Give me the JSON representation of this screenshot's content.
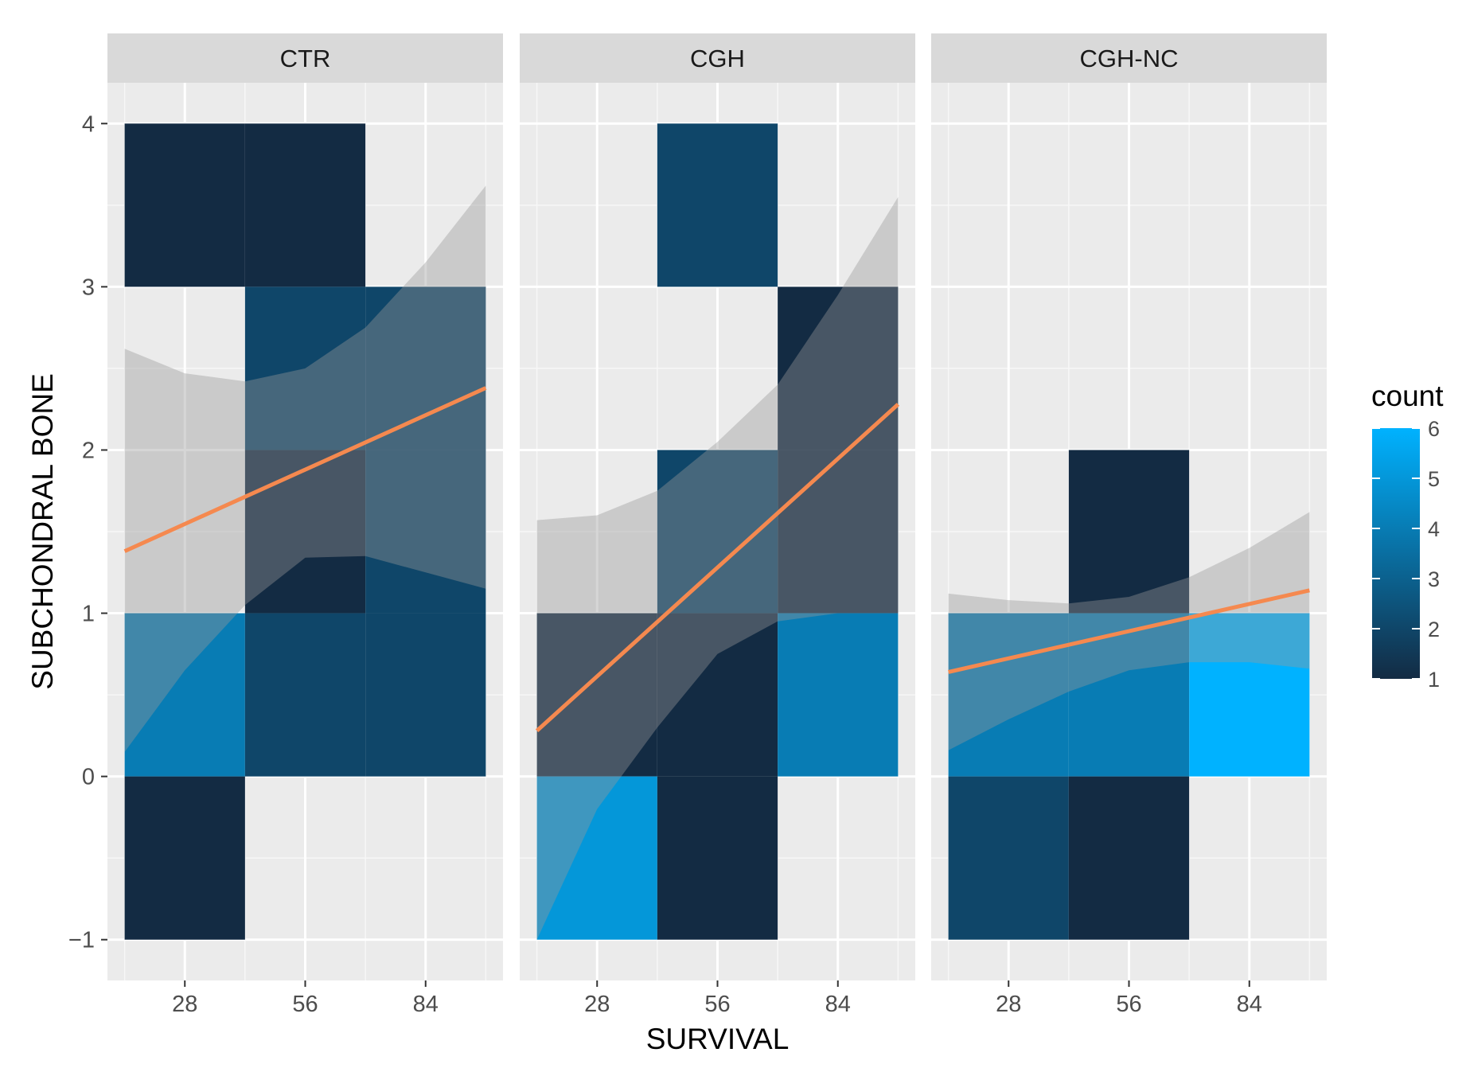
{
  "chart_data": {
    "type": "heatmap",
    "subtype": "faceted 2D bin count heatmap with linear regression lines and confidence bands",
    "xlabel": "SURVIVAL",
    "ylabel": "SUBCHONDRAL BONE",
    "x_ticks": [
      28,
      56,
      84
    ],
    "y_ticks": [
      -1,
      0,
      1,
      2,
      3,
      4
    ],
    "y_tick_labels": [
      "−1",
      "0",
      "1",
      "2",
      "3",
      "4"
    ],
    "xlim": [
      10,
      102
    ],
    "ylim": [
      -1.25,
      4.25
    ],
    "legend": {
      "title": "count",
      "min": 1,
      "max": 6,
      "ticks": [
        1,
        2,
        3,
        4,
        5,
        6
      ],
      "low_color": "#132B43",
      "high_color": "#00B2FF",
      "placement": "right"
    },
    "line_color": "#F5894F",
    "ribbon_color": "#999999",
    "facets": [
      {
        "label": "CTR",
        "tiles": [
          {
            "x0": 14,
            "x1": 42,
            "y0": 3,
            "y1": 4,
            "count": 1
          },
          {
            "x0": 42,
            "x1": 70,
            "y0": 3,
            "y1": 4,
            "count": 1
          },
          {
            "x0": 42,
            "x1": 70,
            "y0": 2,
            "y1": 3,
            "count": 2
          },
          {
            "x0": 70,
            "x1": 98,
            "y0": 2,
            "y1": 3,
            "count": 2
          },
          {
            "x0": 42,
            "x1": 70,
            "y0": 1,
            "y1": 2,
            "count": 1
          },
          {
            "x0": 70,
            "x1": 98,
            "y0": 1,
            "y1": 2,
            "count": 2
          },
          {
            "x0": 14,
            "x1": 42,
            "y0": 0,
            "y1": 1,
            "count": 4
          },
          {
            "x0": 42,
            "x1": 70,
            "y0": 0,
            "y1": 1,
            "count": 2
          },
          {
            "x0": 70,
            "x1": 98,
            "y0": 0,
            "y1": 1,
            "count": 2
          },
          {
            "x0": 14,
            "x1": 42,
            "y0": -1,
            "y1": 0,
            "count": 1
          }
        ],
        "line": {
          "x": [
            14,
            98
          ],
          "y": [
            1.38,
            2.38
          ]
        },
        "ribbon": {
          "x": [
            14,
            28,
            42,
            56,
            70,
            84,
            98
          ],
          "upper": [
            2.62,
            2.47,
            2.42,
            2.5,
            2.75,
            3.15,
            3.62
          ],
          "lower": [
            0.15,
            0.65,
            1.05,
            1.34,
            1.35,
            1.25,
            1.15
          ]
        }
      },
      {
        "label": "CGH",
        "tiles": [
          {
            "x0": 42,
            "x1": 70,
            "y0": 3,
            "y1": 4,
            "count": 2
          },
          {
            "x0": 70,
            "x1": 98,
            "y0": 2,
            "y1": 3,
            "count": 1
          },
          {
            "x0": 70,
            "x1": 98,
            "y0": 1,
            "y1": 2,
            "count": 1
          },
          {
            "x0": 42,
            "x1": 70,
            "y0": 1,
            "y1": 2,
            "count": 2
          },
          {
            "x0": 14,
            "x1": 42,
            "y0": 0,
            "y1": 1,
            "count": 1
          },
          {
            "x0": 42,
            "x1": 70,
            "y0": 0,
            "y1": 1,
            "count": 1
          },
          {
            "x0": 70,
            "x1": 98,
            "y0": 0,
            "y1": 1,
            "count": 4
          },
          {
            "x0": 14,
            "x1": 42,
            "y0": -1,
            "y1": 0,
            "count": 5
          },
          {
            "x0": 42,
            "x1": 70,
            "y0": -1,
            "y1": 0,
            "count": 1
          }
        ],
        "line": {
          "x": [
            14,
            98
          ],
          "y": [
            0.28,
            2.28
          ]
        },
        "ribbon": {
          "x": [
            14,
            28,
            42,
            56,
            70,
            84,
            98
          ],
          "upper": [
            1.57,
            1.6,
            1.75,
            2.05,
            2.4,
            2.95,
            3.55
          ],
          "lower": [
            -1.0,
            -0.2,
            0.3,
            0.75,
            0.95,
            1.0,
            1.0
          ]
        }
      },
      {
        "label": "CGH-NC",
        "tiles": [
          {
            "x0": 42,
            "x1": 70,
            "y0": 1,
            "y1": 2,
            "count": 1
          },
          {
            "x0": 14,
            "x1": 42,
            "y0": 0,
            "y1": 1,
            "count": 4
          },
          {
            "x0": 42,
            "x1": 70,
            "y0": 0,
            "y1": 1,
            "count": 4
          },
          {
            "x0": 70,
            "x1": 98,
            "y0": 0,
            "y1": 1,
            "count": 6
          },
          {
            "x0": 14,
            "x1": 42,
            "y0": -1,
            "y1": 0,
            "count": 2
          },
          {
            "x0": 42,
            "x1": 70,
            "y0": -1,
            "y1": 0,
            "count": 1
          }
        ],
        "line": {
          "x": [
            14,
            98
          ],
          "y": [
            0.64,
            1.14
          ]
        },
        "ribbon": {
          "x": [
            14,
            28,
            42,
            56,
            70,
            84,
            98
          ],
          "upper": [
            1.12,
            1.08,
            1.06,
            1.1,
            1.22,
            1.4,
            1.62
          ],
          "lower": [
            0.16,
            0.35,
            0.52,
            0.65,
            0.7,
            0.7,
            0.66
          ]
        }
      }
    ]
  }
}
